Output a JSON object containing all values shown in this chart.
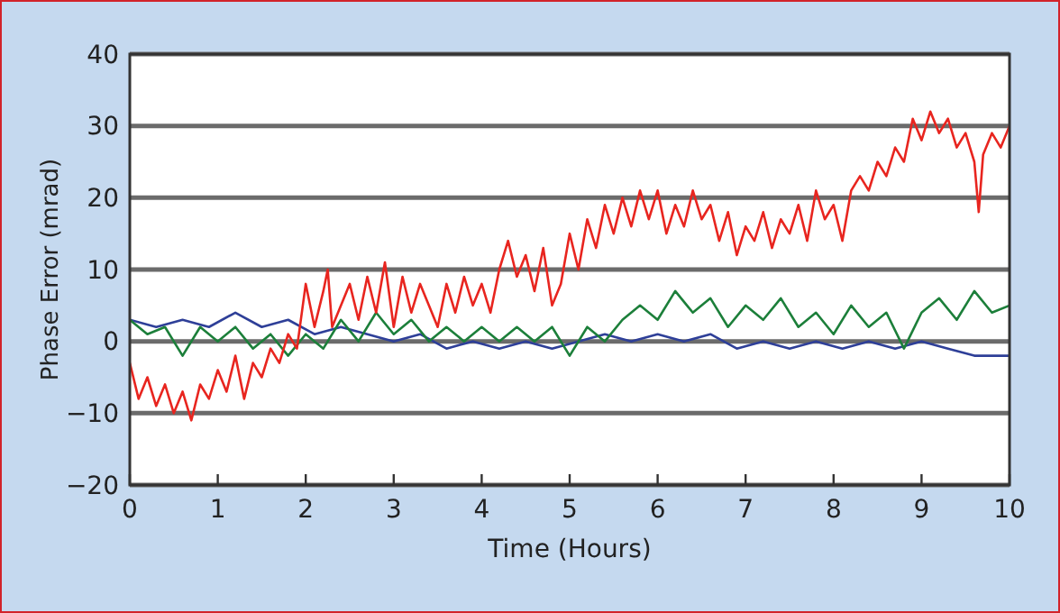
{
  "chart_data": {
    "type": "line",
    "xlabel": "Time (Hours)",
    "ylabel": "Phase Error (mrad)",
    "xlim": [
      0,
      10
    ],
    "ylim": [
      -20,
      40
    ],
    "xticks": [
      0,
      1,
      2,
      3,
      4,
      5,
      6,
      7,
      8,
      9,
      10
    ],
    "yticks": [
      {
        "value": -20,
        "label": "−20"
      },
      {
        "value": -10,
        "label": "−10"
      },
      0,
      10,
      20,
      30,
      40
    ],
    "grid": "y",
    "series": [
      {
        "color": "#2e3f98",
        "x": [
          0,
          0.3,
          0.6,
          0.9,
          1.2,
          1.5,
          1.8,
          2.1,
          2.4,
          2.7,
          3,
          3.3,
          3.6,
          3.9,
          4.2,
          4.5,
          4.8,
          5.1,
          5.4,
          5.7,
          6,
          6.3,
          6.6,
          6.9,
          7.2,
          7.5,
          7.8,
          8.1,
          8.4,
          8.7,
          9,
          9.3,
          9.6,
          9.9,
          10
        ],
        "values": [
          3,
          2,
          3,
          2,
          4,
          2,
          3,
          1,
          2,
          1,
          0,
          1,
          -1,
          0,
          -1,
          0,
          -1,
          0,
          1,
          0,
          1,
          0,
          1,
          -1,
          0,
          -1,
          0,
          -1,
          0,
          -1,
          0,
          -1,
          -2,
          -2,
          -2
        ]
      },
      {
        "color": "#1c7f3a",
        "x": [
          0,
          0.2,
          0.4,
          0.6,
          0.8,
          1,
          1.2,
          1.4,
          1.6,
          1.8,
          2,
          2.2,
          2.4,
          2.6,
          2.8,
          3,
          3.2,
          3.4,
          3.6,
          3.8,
          4,
          4.2,
          4.4,
          4.6,
          4.8,
          5,
          5.2,
          5.4,
          5.6,
          5.8,
          6,
          6.2,
          6.4,
          6.6,
          6.8,
          7,
          7.2,
          7.4,
          7.6,
          7.8,
          8,
          8.2,
          8.4,
          8.6,
          8.8,
          9,
          9.2,
          9.4,
          9.6,
          9.8,
          10
        ],
        "values": [
          3,
          1,
          2,
          -2,
          2,
          0,
          2,
          -1,
          1,
          -2,
          1,
          -1,
          3,
          0,
          4,
          1,
          3,
          0,
          2,
          0,
          2,
          0,
          2,
          0,
          2,
          -2,
          2,
          0,
          3,
          5,
          3,
          7,
          4,
          6,
          2,
          5,
          3,
          6,
          2,
          4,
          1,
          5,
          2,
          4,
          -1,
          4,
          6,
          3,
          7,
          4,
          5
        ]
      },
      {
        "color": "#e8251f",
        "x": [
          0,
          0.1,
          0.2,
          0.3,
          0.4,
          0.5,
          0.6,
          0.7,
          0.8,
          0.9,
          1,
          1.1,
          1.2,
          1.3,
          1.4,
          1.5,
          1.6,
          1.7,
          1.8,
          1.9,
          2,
          2.1,
          2.2,
          2.25,
          2.3,
          2.5,
          2.6,
          2.7,
          2.8,
          2.9,
          3,
          3.1,
          3.2,
          3.3,
          3.4,
          3.5,
          3.6,
          3.7,
          3.8,
          3.9,
          4,
          4.1,
          4.2,
          4.3,
          4.4,
          4.5,
          4.6,
          4.7,
          4.8,
          4.9,
          5,
          5.1,
          5.2,
          5.3,
          5.4,
          5.5,
          5.6,
          5.7,
          5.8,
          5.9,
          6,
          6.1,
          6.2,
          6.3,
          6.4,
          6.5,
          6.6,
          6.7,
          6.8,
          6.9,
          7,
          7.1,
          7.2,
          7.3,
          7.4,
          7.5,
          7.6,
          7.7,
          7.8,
          7.9,
          8,
          8.1,
          8.2,
          8.3,
          8.4,
          8.5,
          8.6,
          8.7,
          8.8,
          8.9,
          9,
          9.1,
          9.2,
          9.3,
          9.4,
          9.5,
          9.6,
          9.65,
          9.7,
          9.8,
          9.9,
          10
        ],
        "values": [
          -3,
          -8,
          -5,
          -9,
          -6,
          -10,
          -7,
          -11,
          -6,
          -8,
          -4,
          -7,
          -2,
          -8,
          -3,
          -5,
          -1,
          -3,
          1,
          -1,
          8,
          2,
          7,
          10,
          2,
          8,
          3,
          9,
          4,
          11,
          2,
          9,
          4,
          8,
          5,
          2,
          8,
          4,
          9,
          5,
          8,
          4,
          10,
          14,
          9,
          12,
          7,
          13,
          5,
          8,
          15,
          10,
          17,
          13,
          19,
          15,
          20,
          16,
          21,
          17,
          21,
          15,
          19,
          16,
          21,
          17,
          19,
          14,
          18,
          12,
          16,
          14,
          18,
          13,
          17,
          15,
          19,
          14,
          21,
          17,
          19,
          14,
          21,
          23,
          21,
          25,
          23,
          27,
          25,
          31,
          28,
          32,
          29,
          31,
          27,
          29,
          25,
          18,
          26,
          29,
          27,
          30
        ]
      }
    ]
  }
}
